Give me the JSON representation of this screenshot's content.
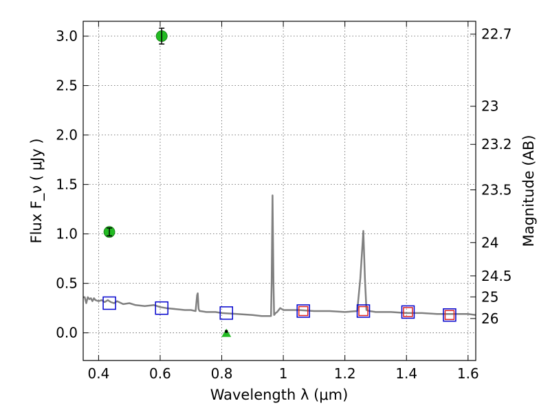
{
  "chart_data": {
    "type": "scatter",
    "xlabel": "Wavelength  λ (μm)",
    "ylabel": "Flux  F_ν  ( μJy )",
    "y2label": "Magnitude (AB)",
    "xlim": [
      0.35,
      1.625
    ],
    "ylim": [
      -0.28,
      3.15
    ],
    "x_ticks": [
      0.4,
      0.6,
      0.8,
      1.0,
      1.2,
      1.4,
      1.6
    ],
    "x_tick_labels": [
      "0.4",
      "0.6",
      "0.8",
      "1",
      "1.2",
      "1.4",
      "1.6"
    ],
    "y_ticks": [
      0.0,
      0.5,
      1.0,
      1.5,
      2.0,
      2.5,
      3.0
    ],
    "y_tick_labels": [
      "0.0",
      "0.5",
      "1.0",
      "1.5",
      "2.0",
      "2.5",
      "3.0"
    ],
    "y2_ticks": [
      22.7,
      23,
      23.2,
      23.5,
      24,
      24.5,
      25,
      26
    ],
    "y2_tick_labels": [
      "22.7",
      "23",
      "23.2",
      "23.5",
      "24",
      "24.5",
      "25",
      "26"
    ],
    "grid": true,
    "series": [
      {
        "kind": "line",
        "color": "#808080",
        "x": [
          0.35,
          0.355,
          0.36,
          0.365,
          0.37,
          0.375,
          0.38,
          0.385,
          0.39,
          0.4,
          0.41,
          0.42,
          0.43,
          0.44,
          0.45,
          0.46,
          0.48,
          0.5,
          0.52,
          0.55,
          0.58,
          0.6,
          0.62,
          0.65,
          0.68,
          0.7,
          0.715,
          0.72,
          0.722,
          0.725,
          0.728,
          0.73,
          0.75,
          0.78,
          0.8,
          0.85,
          0.9,
          0.93,
          0.95,
          0.96,
          0.962,
          0.965,
          0.968,
          0.97,
          0.975,
          0.98,
          0.99,
          1.0,
          1.05,
          1.1,
          1.15,
          1.2,
          1.24,
          1.25,
          1.26,
          1.265,
          1.27,
          1.28,
          1.3,
          1.35,
          1.4,
          1.45,
          1.5,
          1.55,
          1.6,
          1.625
        ],
        "y": [
          0.36,
          0.36,
          0.3,
          0.36,
          0.34,
          0.35,
          0.32,
          0.35,
          0.33,
          0.32,
          0.33,
          0.31,
          0.33,
          0.31,
          0.3,
          0.32,
          0.29,
          0.3,
          0.28,
          0.27,
          0.28,
          0.26,
          0.25,
          0.24,
          0.23,
          0.23,
          0.22,
          0.38,
          0.4,
          0.24,
          0.22,
          0.22,
          0.21,
          0.21,
          0.2,
          0.19,
          0.18,
          0.17,
          0.17,
          0.17,
          0.5,
          1.39,
          0.5,
          0.18,
          0.2,
          0.21,
          0.25,
          0.23,
          0.23,
          0.22,
          0.22,
          0.21,
          0.22,
          0.55,
          1.03,
          0.55,
          0.23,
          0.22,
          0.21,
          0.21,
          0.2,
          0.2,
          0.19,
          0.19,
          0.19,
          0.18
        ]
      },
      {
        "kind": "squares",
        "color": "#0000cc",
        "x": [
          0.435,
          0.605,
          0.815,
          1.065,
          1.26,
          1.405,
          1.54
        ],
        "y": [
          0.3,
          0.25,
          0.2,
          0.22,
          0.22,
          0.21,
          0.18
        ]
      },
      {
        "kind": "squares",
        "color": "#dd2222",
        "x": [
          1.065,
          1.26,
          1.405,
          1.54
        ],
        "y": [
          0.22,
          0.22,
          0.21,
          0.18
        ]
      },
      {
        "kind": "points",
        "color": "#22bb22",
        "x": [
          0.435,
          0.605
        ],
        "y": [
          1.02,
          3.0
        ],
        "yerr": [
          0.04,
          0.08
        ]
      },
      {
        "kind": "upper-limit",
        "color": "#22bb22",
        "x": [
          0.815
        ],
        "y": [
          0.0
        ]
      }
    ]
  }
}
